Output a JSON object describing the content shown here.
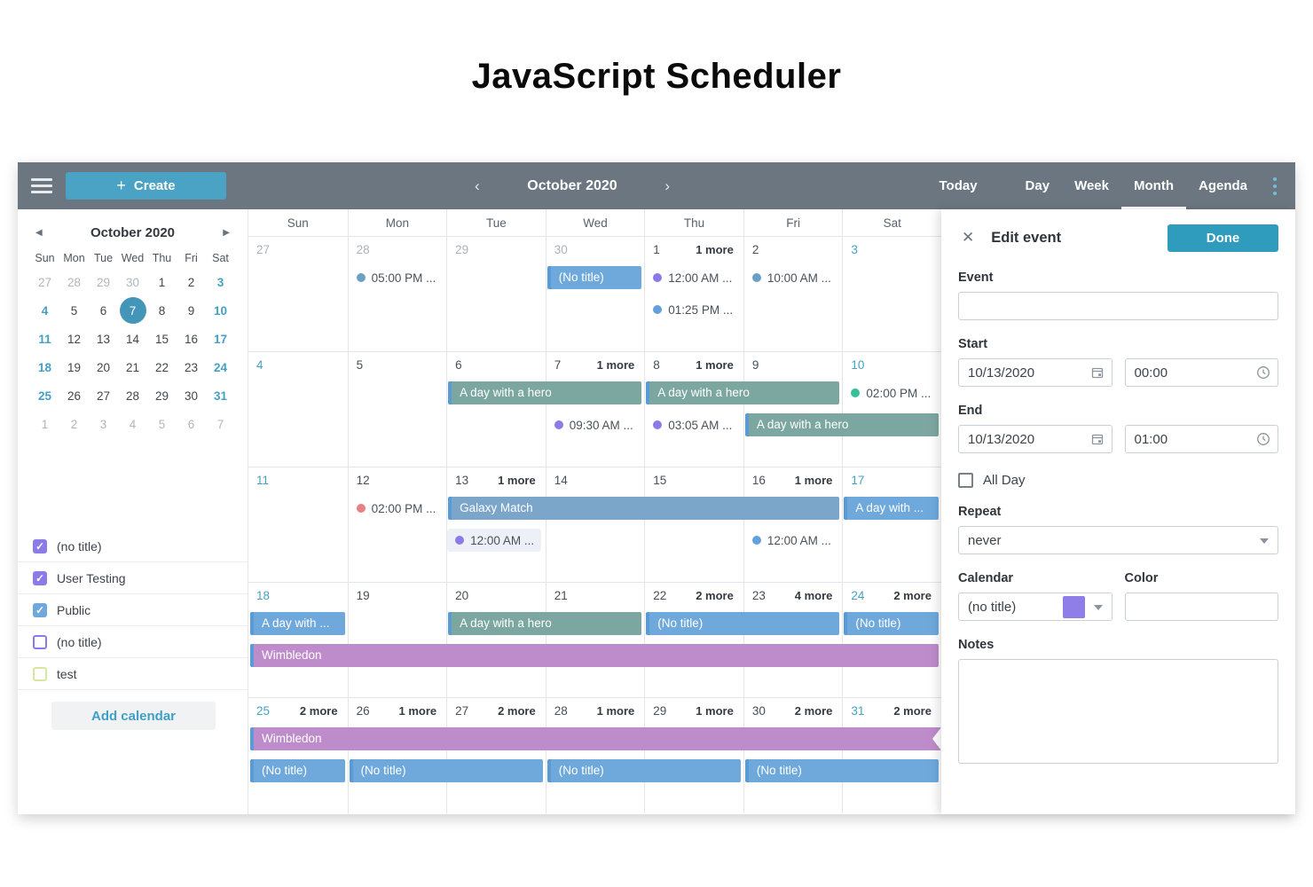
{
  "page_title": "JavaScript Scheduler",
  "toolbar": {
    "create_label": "Create",
    "nav_title": "October 2020",
    "views": [
      "Today",
      "Day",
      "Week",
      "Month",
      "Agenda"
    ],
    "active_view": "Month"
  },
  "mini_calendar": {
    "title": "October 2020",
    "day_names": [
      "Sun",
      "Mon",
      "Tue",
      "Wed",
      "Thu",
      "Fri",
      "Sat"
    ],
    "weeks": [
      [
        {
          "n": "27",
          "c": "muted"
        },
        {
          "n": "28",
          "c": "muted"
        },
        {
          "n": "29",
          "c": "muted"
        },
        {
          "n": "30",
          "c": "muted"
        },
        {
          "n": "1",
          "c": ""
        },
        {
          "n": "2",
          "c": ""
        },
        {
          "n": "3",
          "c": "weekend"
        }
      ],
      [
        {
          "n": "4",
          "c": "weekend"
        },
        {
          "n": "5",
          "c": ""
        },
        {
          "n": "6",
          "c": ""
        },
        {
          "n": "7",
          "c": "selected"
        },
        {
          "n": "8",
          "c": ""
        },
        {
          "n": "9",
          "c": ""
        },
        {
          "n": "10",
          "c": "weekend"
        }
      ],
      [
        {
          "n": "11",
          "c": "weekend"
        },
        {
          "n": "12",
          "c": ""
        },
        {
          "n": "13",
          "c": ""
        },
        {
          "n": "14",
          "c": ""
        },
        {
          "n": "15",
          "c": ""
        },
        {
          "n": "16",
          "c": ""
        },
        {
          "n": "17",
          "c": "weekend"
        }
      ],
      [
        {
          "n": "18",
          "c": "weekend"
        },
        {
          "n": "19",
          "c": ""
        },
        {
          "n": "20",
          "c": ""
        },
        {
          "n": "21",
          "c": ""
        },
        {
          "n": "22",
          "c": ""
        },
        {
          "n": "23",
          "c": ""
        },
        {
          "n": "24",
          "c": "weekend"
        }
      ],
      [
        {
          "n": "25",
          "c": "weekend"
        },
        {
          "n": "26",
          "c": ""
        },
        {
          "n": "27",
          "c": ""
        },
        {
          "n": "28",
          "c": ""
        },
        {
          "n": "29",
          "c": ""
        },
        {
          "n": "30",
          "c": ""
        },
        {
          "n": "31",
          "c": "weekend"
        }
      ],
      [
        {
          "n": "1",
          "c": "muted"
        },
        {
          "n": "2",
          "c": "muted"
        },
        {
          "n": "3",
          "c": "muted"
        },
        {
          "n": "4",
          "c": "muted"
        },
        {
          "n": "5",
          "c": "muted"
        },
        {
          "n": "6",
          "c": "muted"
        },
        {
          "n": "7",
          "c": "muted"
        }
      ]
    ]
  },
  "calendar_list": {
    "items": [
      {
        "label": "(no title)",
        "checked": true,
        "color": "#8B7BE8"
      },
      {
        "label": "User Testing",
        "checked": true,
        "color": "#8B7BE8"
      },
      {
        "label": "Public",
        "checked": true,
        "color": "#6FA9DC"
      },
      {
        "label": "(no title)",
        "checked": false,
        "color": "#8B7BE8"
      },
      {
        "label": "test",
        "checked": false,
        "color": "#D6E8A4"
      }
    ],
    "add_label": "Add calendar"
  },
  "event_colors": {
    "teal": "#7CA7A0",
    "blue": "#6FA9DC",
    "steel": "#7BA6C9",
    "purple": "#BE8BCB",
    "dot_steel": "#6D9FC4",
    "dot_purple": "#8B7BE8",
    "dot_blue": "#64A0DC",
    "dot_green": "#36BE97",
    "dot_red": "#E88181"
  },
  "grid": {
    "day_headers": [
      "Sun",
      "Mon",
      "Tue",
      "Wed",
      "Thu",
      "Fri",
      "Sat"
    ],
    "weeks": [
      {
        "days": [
          {
            "num": "27",
            "cls": "muted"
          },
          {
            "num": "28",
            "cls": "muted"
          },
          {
            "num": "29",
            "cls": "muted"
          },
          {
            "num": "30",
            "cls": "muted"
          },
          {
            "num": "1",
            "cls": "",
            "more": "1 more"
          },
          {
            "num": "2",
            "cls": ""
          },
          {
            "num": "3",
            "cls": "weekend"
          }
        ],
        "events": [
          {
            "type": "dot",
            "row": 0,
            "col": 1,
            "dot": "dot_steel",
            "text": "05:00 PM ..."
          },
          {
            "type": "bar",
            "row": 0,
            "col": 3,
            "span": 1,
            "color": "blue",
            "label": "(No title)"
          },
          {
            "type": "dot",
            "row": 0,
            "col": 4,
            "dot": "dot_purple",
            "text": "12:00 AM ..."
          },
          {
            "type": "dot",
            "row": 0,
            "col": 5,
            "dot": "dot_steel",
            "text": "10:00 AM ..."
          },
          {
            "type": "dot",
            "row": 1,
            "col": 4,
            "dot": "dot_blue",
            "text": "01:25 PM ..."
          }
        ]
      },
      {
        "days": [
          {
            "num": "4",
            "cls": "weekend"
          },
          {
            "num": "5",
            "cls": ""
          },
          {
            "num": "6",
            "cls": ""
          },
          {
            "num": "7",
            "cls": "",
            "more": "1 more"
          },
          {
            "num": "8",
            "cls": "",
            "more": "1 more"
          },
          {
            "num": "9",
            "cls": ""
          },
          {
            "num": "10",
            "cls": "weekend"
          }
        ],
        "events": [
          {
            "type": "bar",
            "row": 0,
            "col": 2,
            "span": 2,
            "color": "teal",
            "label": "A day with a hero"
          },
          {
            "type": "bar",
            "row": 0,
            "col": 4,
            "span": 2,
            "color": "teal",
            "label": "A day with a hero"
          },
          {
            "type": "dot",
            "row": 0,
            "col": 6,
            "dot": "dot_green",
            "text": "02:00 PM ..."
          },
          {
            "type": "dot",
            "row": 1,
            "col": 3,
            "dot": "dot_purple",
            "text": "09:30 AM ..."
          },
          {
            "type": "dot",
            "row": 1,
            "col": 4,
            "dot": "dot_purple",
            "text": "03:05 AM ..."
          },
          {
            "type": "bar",
            "row": 1,
            "col": 5,
            "span": 2,
            "color": "teal",
            "label": "A day with a hero"
          }
        ]
      },
      {
        "days": [
          {
            "num": "11",
            "cls": "weekend"
          },
          {
            "num": "12",
            "cls": ""
          },
          {
            "num": "13",
            "cls": "",
            "more": "1 more"
          },
          {
            "num": "14",
            "cls": ""
          },
          {
            "num": "15",
            "cls": ""
          },
          {
            "num": "16",
            "cls": "",
            "more": "1 more"
          },
          {
            "num": "17",
            "cls": "weekend"
          }
        ],
        "events": [
          {
            "type": "dot",
            "row": 0,
            "col": 1,
            "dot": "dot_red",
            "text": "02:00 PM ..."
          },
          {
            "type": "bar",
            "row": 0,
            "col": 2,
            "span": 4,
            "color": "steel",
            "label": "Galaxy Match"
          },
          {
            "type": "bar",
            "row": 0,
            "col": 6,
            "span": 1,
            "color": "blue",
            "label": "A day with ..."
          },
          {
            "type": "dot",
            "row": 1,
            "col": 2,
            "dot": "dot_purple",
            "text": "12:00 AM ...",
            "selected": true
          },
          {
            "type": "dot",
            "row": 1,
            "col": 5,
            "dot": "dot_blue",
            "text": "12:00 AM ..."
          }
        ]
      },
      {
        "days": [
          {
            "num": "18",
            "cls": "weekend"
          },
          {
            "num": "19",
            "cls": ""
          },
          {
            "num": "20",
            "cls": ""
          },
          {
            "num": "21",
            "cls": ""
          },
          {
            "num": "22",
            "cls": "",
            "more": "2 more"
          },
          {
            "num": "23",
            "cls": "",
            "more": "4 more"
          },
          {
            "num": "24",
            "cls": "weekend",
            "more": "2 more"
          }
        ],
        "events": [
          {
            "type": "bar",
            "row": 0,
            "col": 0,
            "span": 1,
            "color": "blue",
            "label": "A day with ..."
          },
          {
            "type": "bar",
            "row": 0,
            "col": 2,
            "span": 2,
            "color": "teal",
            "label": "A day with a hero"
          },
          {
            "type": "bar",
            "row": 0,
            "col": 4,
            "span": 2,
            "color": "blue",
            "label": "(No title)"
          },
          {
            "type": "bar",
            "row": 0,
            "col": 6,
            "span": 1,
            "color": "blue",
            "label": "(No title)"
          },
          {
            "type": "bar",
            "row": 1,
            "col": 0,
            "span": 7,
            "color": "purple",
            "label": "Wimbledon"
          }
        ]
      },
      {
        "days": [
          {
            "num": "25",
            "cls": "weekend",
            "more": "2 more"
          },
          {
            "num": "26",
            "cls": "",
            "more": "1 more"
          },
          {
            "num": "27",
            "cls": "",
            "more": "2 more"
          },
          {
            "num": "28",
            "cls": "",
            "more": "1 more"
          },
          {
            "num": "29",
            "cls": "",
            "more": "1 more"
          },
          {
            "num": "30",
            "cls": "",
            "more": "2 more"
          },
          {
            "num": "31",
            "cls": "weekend",
            "more": "2 more"
          }
        ],
        "events": [
          {
            "type": "bar",
            "row": 0,
            "col": 0,
            "span": 7,
            "color": "purple",
            "label": "Wimbledon",
            "cont": true
          },
          {
            "type": "bar",
            "row": 1,
            "col": 0,
            "span": 1,
            "color": "blue",
            "label": "(No title)"
          },
          {
            "type": "bar",
            "row": 1,
            "col": 1,
            "span": 2,
            "color": "blue",
            "label": "(No title)"
          },
          {
            "type": "bar",
            "row": 1,
            "col": 3,
            "span": 2,
            "color": "blue",
            "label": "(No title)"
          },
          {
            "type": "bar",
            "row": 1,
            "col": 5,
            "span": 2,
            "color": "blue",
            "label": "(No title)"
          }
        ]
      }
    ]
  },
  "panel": {
    "title": "Edit event",
    "done_label": "Done",
    "event_label": "Event",
    "event_value": "",
    "start_label": "Start",
    "start_date": "10/13/2020",
    "start_time": "00:00",
    "end_label": "End",
    "end_date": "10/13/2020",
    "end_time": "01:00",
    "allday_label": "All Day",
    "repeat_label": "Repeat",
    "repeat_value": "never",
    "calendar_label": "Calendar",
    "calendar_value": "(no title)",
    "calendar_swatch": "#8F7EE8",
    "color_label": "Color",
    "color_value": "",
    "notes_label": "Notes",
    "notes_value": ""
  }
}
